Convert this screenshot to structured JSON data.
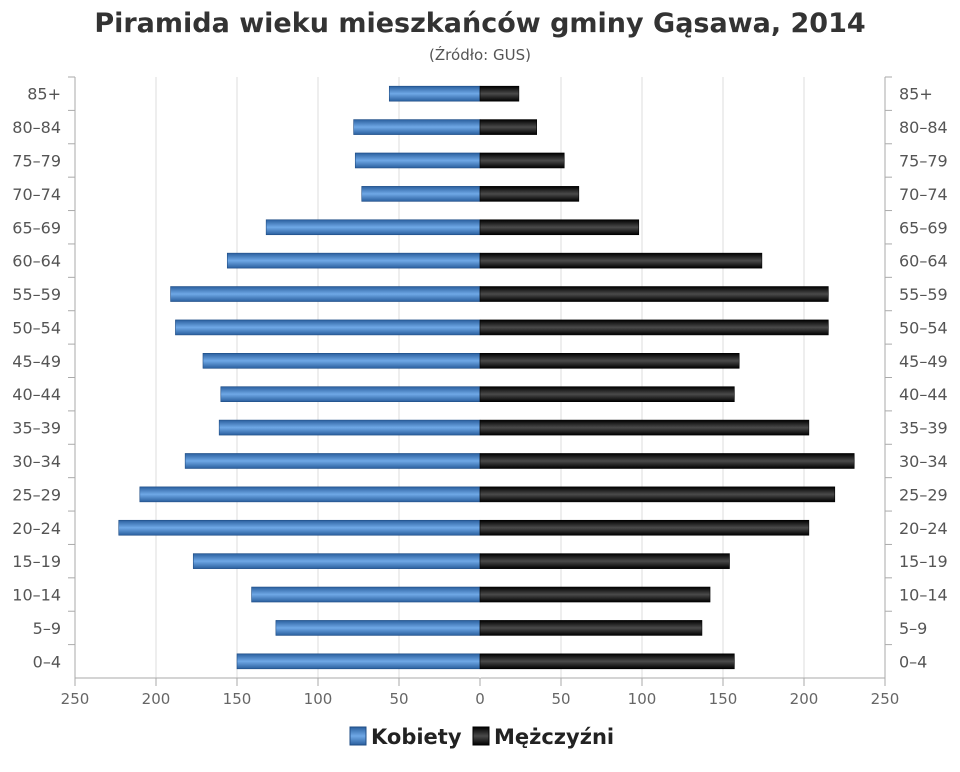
{
  "chart_data": {
    "type": "bar",
    "orientation": "horizontal-population-pyramid",
    "title": "Piramida wieku mieszkańców gminy Gąsawa, 2014",
    "subtitle": "(Źródło: GUS)",
    "categories": [
      "85+",
      "80-84",
      "75-79",
      "70-74",
      "65-69",
      "60-64",
      "55-59",
      "50-54",
      "45-49",
      "40-44",
      "35-39",
      "30-34",
      "25-29",
      "20-24",
      "15-19",
      "10-14",
      "5-9",
      "0-4"
    ],
    "category_labels": [
      "85+",
      "80–84",
      "75–79",
      "70–74",
      "65–69",
      "60–64",
      "55–59",
      "50–54",
      "45–49",
      "40–44",
      "35–39",
      "30–34",
      "25–29",
      "20–24",
      "15–19",
      "10–14",
      "5–9",
      "0–4"
    ],
    "series": [
      {
        "name": "Kobiety",
        "side": "left",
        "color": "#3d7fc8",
        "values": [
          56,
          78,
          77,
          73,
          132,
          156,
          191,
          188,
          171,
          160,
          161,
          182,
          210,
          223,
          177,
          141,
          126,
          150
        ]
      },
      {
        "name": "Mężczyźni",
        "side": "right",
        "color": "#161616",
        "values": [
          24,
          35,
          52,
          61,
          98,
          174,
          215,
          215,
          160,
          157,
          203,
          231,
          219,
          203,
          154,
          142,
          137,
          157
        ]
      }
    ],
    "x_ticks": [
      "250",
      "200",
      "150",
      "100",
      "50",
      "0",
      "50",
      "100",
      "150",
      "200",
      "250"
    ],
    "xlim": [
      -250,
      250
    ],
    "grid": true,
    "legend_position": "bottom-center"
  }
}
